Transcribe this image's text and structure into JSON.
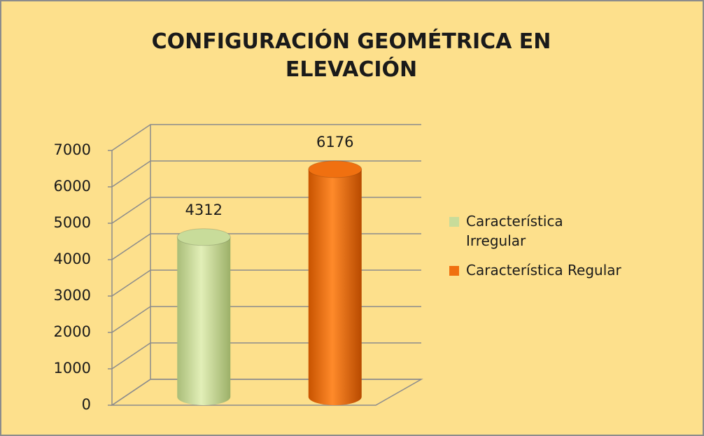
{
  "chart_data": {
    "type": "bar3d-cylinder",
    "title": "CONFIGURACIÓN GEOMÉTRICA EN ELEVACIÓN",
    "categories": [
      null
    ],
    "series": [
      {
        "name": "Característica Irregular",
        "color": "#c8dc9a",
        "values": [
          4312
        ]
      },
      {
        "name": "Característica Regular",
        "color": "#f07010",
        "values": [
          6176
        ]
      }
    ],
    "ylim": [
      0,
      7000
    ],
    "yticks": [
      0,
      1000,
      2000,
      3000,
      4000,
      5000,
      6000,
      7000
    ],
    "grid": true,
    "legend": "right"
  }
}
